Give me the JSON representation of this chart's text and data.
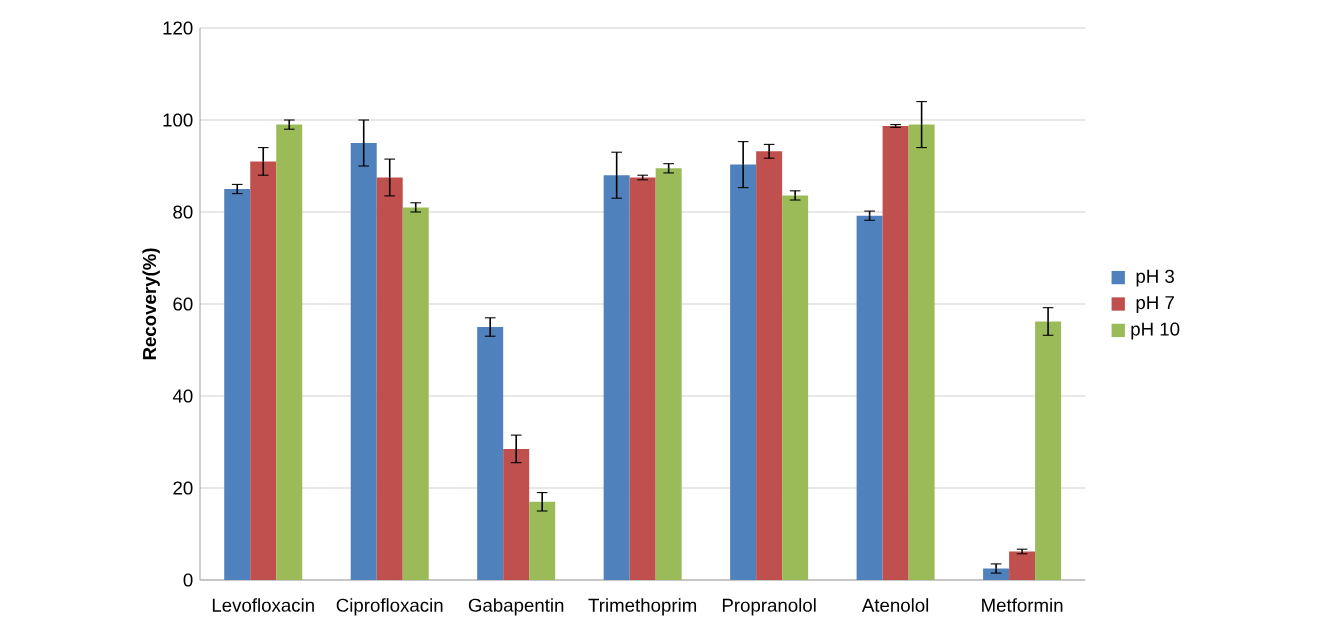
{
  "chart_data": {
    "type": "bar",
    "ylabel": "Recovery(%)",
    "categories": [
      "Levofloxacin",
      "Ciprofloxacin",
      "Gabapentin",
      "Trimethoprim",
      "Propranolol",
      "Atenolol",
      "Metformin"
    ],
    "series": [
      {
        "name": "pH 3",
        "color": "#4f81bd",
        "values": [
          85,
          95,
          55,
          88,
          90.3,
          79.2,
          2.5
        ],
        "errors": [
          1,
          5,
          2,
          5,
          5,
          1,
          1
        ]
      },
      {
        "name": "pH 7",
        "color": "#c0504d",
        "values": [
          91,
          87.5,
          28.5,
          87.5,
          93.2,
          98.7,
          6.2
        ],
        "errors": [
          3,
          4,
          3,
          0.5,
          1.5,
          0.3,
          0.5
        ]
      },
      {
        "name": "pH 10",
        "color": "#9bbb59",
        "values": [
          99,
          81,
          17,
          89.5,
          83.6,
          99,
          56.2
        ],
        "errors": [
          1,
          1,
          2,
          1,
          1,
          5,
          3
        ]
      }
    ],
    "ylim": [
      0,
      120
    ],
    "yticks": [
      0,
      20,
      40,
      60,
      80,
      100,
      120
    ],
    "grid": "y",
    "legend": "right"
  }
}
